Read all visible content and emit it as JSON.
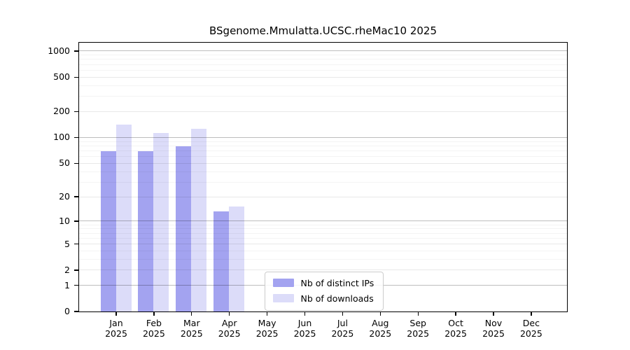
{
  "chart_data": {
    "type": "bar",
    "title": "BSgenome.Mmulatta.UCSC.rheMac10 2025",
    "year": "2025",
    "categories": [
      "Jan",
      "Feb",
      "Mar",
      "Apr",
      "May",
      "Jun",
      "Jul",
      "Aug",
      "Sep",
      "Oct",
      "Nov",
      "Dec"
    ],
    "series": [
      {
        "name": "Nb of distinct IPs",
        "color": "#a3a3f0",
        "values": [
          68,
          68,
          78,
          13,
          0,
          0,
          0,
          0,
          0,
          0,
          0,
          0
        ]
      },
      {
        "name": "Nb of downloads",
        "color": "#dcdcf9",
        "values": [
          140,
          112,
          124,
          15,
          0,
          0,
          0,
          0,
          0,
          0,
          0,
          0
        ]
      }
    ],
    "y_scale": "log10(1+y)",
    "y_ticks": [
      0,
      1,
      2,
      5,
      10,
      20,
      50,
      100,
      200,
      500,
      1000
    ],
    "y_minor_ticks": [
      3,
      4,
      6,
      7,
      8,
      9,
      30,
      40,
      60,
      70,
      80,
      90,
      300,
      400,
      600,
      700,
      800,
      900
    ],
    "y_decade_ticks": [
      1,
      10,
      100,
      1000
    ],
    "ylim": [
      0,
      1250
    ],
    "grid": true,
    "legend_position": "bottom-center",
    "background_color": "#ffffff",
    "axis_color": "#000000"
  }
}
